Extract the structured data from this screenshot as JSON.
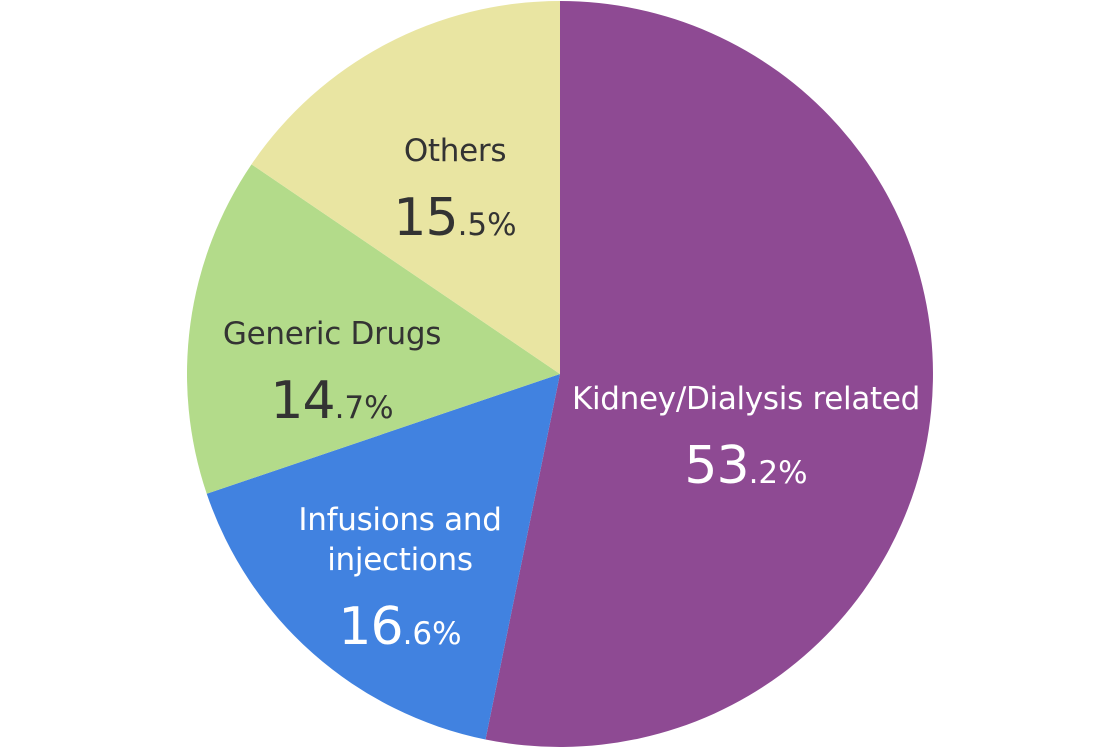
{
  "chart_data": {
    "type": "pie",
    "slices": [
      {
        "name_lines": [
          "Kidney/Dialysis related"
        ],
        "value": 53.2,
        "value_int": "53",
        "value_dec": ".2%",
        "color": "#8e4a93",
        "text_color": "#ffffff"
      },
      {
        "name_lines": [
          "Infusions and",
          "injections"
        ],
        "value": 16.6,
        "value_int": "16",
        "value_dec": ".6%",
        "color": "#4182e0",
        "text_color": "#ffffff"
      },
      {
        "name_lines": [
          "Generic Drugs"
        ],
        "value": 14.7,
        "value_int": "14",
        "value_dec": ".7%",
        "color": "#b3db8a",
        "text_color": "#333333"
      },
      {
        "name_lines": [
          "Others"
        ],
        "value": 15.5,
        "value_int": "15",
        "value_dec": ".5%",
        "color": "#e9e5a2",
        "text_color": "#333333"
      }
    ]
  }
}
